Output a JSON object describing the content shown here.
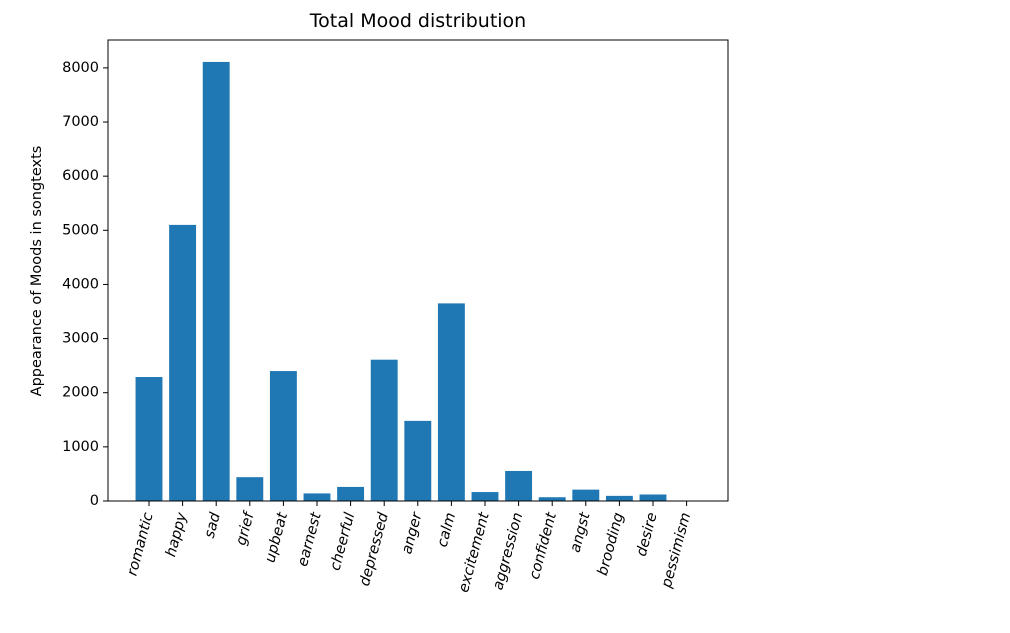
{
  "chart_data": {
    "type": "bar",
    "title": "Total Mood distribution",
    "xlabel": "",
    "ylabel": "Appearance of Moods in songtexts",
    "categories": [
      "romantic",
      "happy",
      "sad",
      "grief",
      "upbeat",
      "earnest",
      "cheerful",
      "depressed",
      "anger",
      "calm",
      "excitement",
      "aggression",
      "confident",
      "angst",
      "brooding",
      "desire",
      "pessimism"
    ],
    "values": [
      2290,
      5100,
      8110,
      440,
      2400,
      140,
      260,
      2610,
      1480,
      3650,
      165,
      555,
      70,
      210,
      95,
      120,
      5
    ],
    "ylim": [
      0,
      8515
    ],
    "yticks": [
      0,
      1000,
      2000,
      3000,
      4000,
      5000,
      6000,
      7000,
      8000
    ],
    "bar_color": "#1f77b4",
    "xtick_rotation_deg": 75,
    "grid": false,
    "legend": "none"
  }
}
